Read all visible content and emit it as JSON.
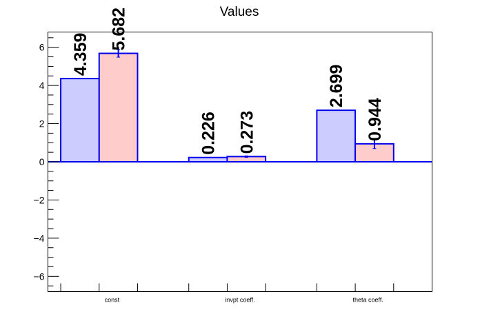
{
  "chart_data": {
    "type": "bar",
    "title": "Values",
    "categories": [
      "const",
      "invpt coeff.",
      "theta coeff."
    ],
    "series": [
      {
        "values": [
          4.359,
          0.226,
          2.699
        ],
        "value_labels": [
          "4.359",
          "0.226",
          "2.699"
        ],
        "errors": [
          0,
          0,
          0
        ],
        "fill": "#ccccff",
        "stroke": "#0000ee"
      },
      {
        "values": [
          5.682,
          0.273,
          0.944
        ],
        "value_labels": [
          "5.682",
          "0.273",
          "0.944"
        ],
        "errors": [
          0.2,
          0.04,
          0.25
        ],
        "fill": "#ffcccc",
        "stroke": "#0000ee"
      }
    ],
    "ylim": [
      -6.8,
      6.8
    ],
    "yticks": [
      -6,
      -4,
      -2,
      0,
      2,
      4,
      6
    ],
    "ytick_labels": [
      "−6",
      "−4",
      "−2",
      "0",
      "2",
      "4",
      "6"
    ],
    "xlabel": "",
    "ylabel": "",
    "grid": false,
    "legend": "none"
  }
}
